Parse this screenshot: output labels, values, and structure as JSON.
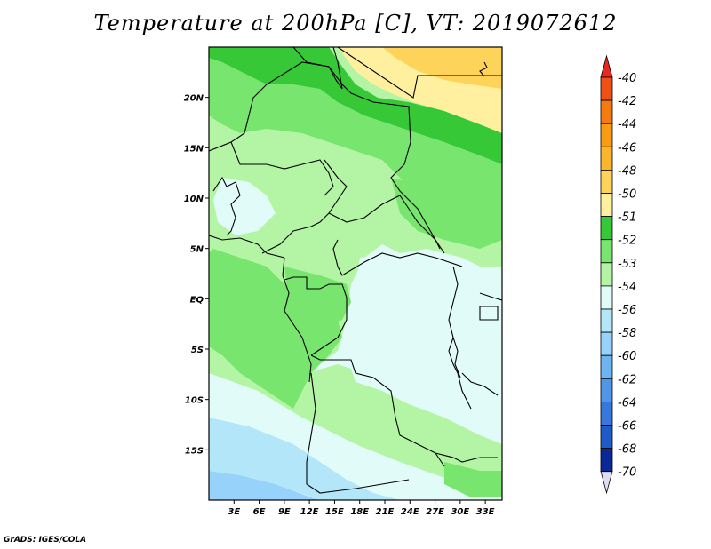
{
  "title": "Temperature at 200hPa [C], VT: 2019072612",
  "credit": "GrADS: IGES/COLA",
  "map": {
    "lat_range": [
      -20,
      25
    ],
    "lon_range": [
      0,
      35
    ],
    "y_ticks": [
      {
        "lat": 20,
        "label": "20N"
      },
      {
        "lat": 15,
        "label": "15N"
      },
      {
        "lat": 10,
        "label": "10N"
      },
      {
        "lat": 5,
        "label": "5N"
      },
      {
        "lat": 0,
        "label": "EQ"
      },
      {
        "lat": -5,
        "label": "5S"
      },
      {
        "lat": -10,
        "label": "10S"
      },
      {
        "lat": -15,
        "label": "15S"
      }
    ],
    "x_ticks": [
      {
        "lon": 3,
        "label": "3E"
      },
      {
        "lon": 6,
        "label": "6E"
      },
      {
        "lon": 9,
        "label": "9E"
      },
      {
        "lon": 12,
        "label": "12E"
      },
      {
        "lon": 15,
        "label": "15E"
      },
      {
        "lon": 18,
        "label": "18E"
      },
      {
        "lon": 21,
        "label": "21E"
      },
      {
        "lon": 24,
        "label": "24E"
      },
      {
        "lon": 27,
        "label": "27E"
      },
      {
        "lon": 30,
        "label": "30E"
      },
      {
        "lon": 33,
        "label": "33E"
      }
    ]
  },
  "colorbar": {
    "top_color": "#e8281e",
    "bottom_color": "#e0dcf2",
    "levels": [
      {
        "label": "-40",
        "color": "#f05014"
      },
      {
        "label": "-42",
        "color": "#f57a0f"
      },
      {
        "label": "-44",
        "color": "#fa9b14"
      },
      {
        "label": "-46",
        "color": "#fbb52d"
      },
      {
        "label": "-48",
        "color": "#fdd35a"
      },
      {
        "label": "-50",
        "color": "#fff0a0"
      },
      {
        "label": "-51",
        "color": "#37c837"
      },
      {
        "label": "-52",
        "color": "#78e66e"
      },
      {
        "label": "-53",
        "color": "#b4f5a5"
      },
      {
        "label": "-54",
        "color": "#e1fbf8"
      },
      {
        "label": "-56",
        "color": "#b4e6fa"
      },
      {
        "label": "-58",
        "color": "#96d2fa"
      },
      {
        "label": "-60",
        "color": "#6eb4f0"
      },
      {
        "label": "-62",
        "color": "#5096e6"
      },
      {
        "label": "-64",
        "color": "#3778dc"
      },
      {
        "label": "-66",
        "color": "#1e5ac8"
      },
      {
        "label": "-68",
        "color": "#0a2896"
      },
      {
        "label": "-70",
        "color": "#000064"
      }
    ]
  }
}
